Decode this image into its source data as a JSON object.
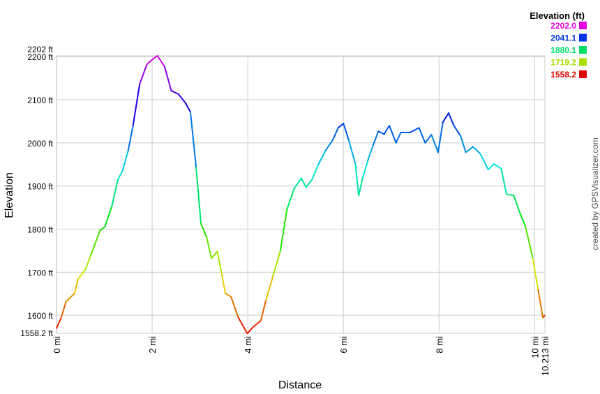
{
  "chart_data": {
    "type": "line",
    "xlabel": "Distance",
    "ylabel": "Elevation",
    "xlim": [
      0,
      10.213
    ],
    "ylim": [
      1558.2,
      2202
    ],
    "grid": true,
    "x_ticks": [
      {
        "value": 0,
        "label": "0 mi"
      },
      {
        "value": 2,
        "label": "2 mi"
      },
      {
        "value": 4,
        "label": "4 mi"
      },
      {
        "value": 6,
        "label": "6 mi"
      },
      {
        "value": 8,
        "label": "8 mi"
      },
      {
        "value": 10,
        "label": "10 mi"
      },
      {
        "value": 10.213,
        "label": "10.213 mi"
      }
    ],
    "y_ticks": [
      {
        "value": 1558.2,
        "label": "1558.2 ft"
      },
      {
        "value": 1600,
        "label": "1600 ft"
      },
      {
        "value": 1700,
        "label": "1700 ft"
      },
      {
        "value": 1800,
        "label": "1800 ft"
      },
      {
        "value": 1900,
        "label": "1900 ft"
      },
      {
        "value": 2000,
        "label": "2000 ft"
      },
      {
        "value": 2100,
        "label": "2100 ft"
      },
      {
        "value": 2200,
        "label": "2200 ft"
      },
      {
        "value": 2202,
        "label": "2202 ft"
      }
    ],
    "legend": {
      "title": "Elevation (ft)",
      "position": "top-right",
      "entries": [
        {
          "label": "2202.0",
          "color": "#e000e0"
        },
        {
          "label": "2041.1",
          "color": "#0033e6"
        },
        {
          "label": "1880.1",
          "color": "#00dd66"
        },
        {
          "label": "1719.2",
          "color": "#aadd00"
        },
        {
          "label": "1558.2",
          "color": "#dd0000"
        }
      ]
    },
    "series": [
      {
        "x": [
          0,
          0.1,
          0.2,
          0.38,
          0.45,
          0.6,
          0.72,
          0.91,
          1.01,
          1.16,
          1.28,
          1.38,
          1.5,
          1.6,
          1.74,
          1.89,
          2.01,
          2.11,
          2.26,
          2.4,
          2.55,
          2.7,
          2.8,
          2.92,
          3.02,
          3.14,
          3.24,
          3.36,
          3.45,
          3.53,
          3.65,
          3.8,
          3.99,
          4.12,
          4.27,
          4.38,
          4.53,
          4.68,
          4.82,
          4.97,
          5.12,
          5.22,
          5.34,
          5.48,
          5.63,
          5.78,
          5.89,
          6.0,
          6.11,
          6.25,
          6.32,
          6.4,
          6.51,
          6.61,
          6.73,
          6.85,
          6.96,
          7.1,
          7.2,
          7.39,
          7.58,
          7.71,
          7.84,
          7.98,
          8.08,
          8.2,
          8.31,
          8.45,
          8.56,
          8.71,
          8.86,
          9.03,
          9.15,
          9.3,
          9.41,
          9.56,
          9.69,
          9.81,
          9.96,
          10.07,
          10.17,
          10.213
        ],
        "y": [
          1570,
          1595,
          1632,
          1651,
          1684,
          1705,
          1740,
          1797,
          1805,
          1854,
          1914,
          1935,
          1983,
          2040,
          2137,
          2182,
          2194,
          2202,
          2177,
          2121,
          2113,
          2092,
          2072,
          1943,
          1813,
          1781,
          1732,
          1748,
          1700,
          1651,
          1643,
          1595,
          1558,
          1574,
          1587,
          1635,
          1692,
          1749,
          1846,
          1894,
          1918,
          1897,
          1914,
          1951,
          1983,
          2007,
          2035,
          2045,
          2007,
          1951,
          1878,
          1918,
          1959,
          1991,
          2027,
          2020,
          2040,
          2000,
          2024,
          2024,
          2035,
          2000,
          2019,
          1978,
          2048,
          2069,
          2040,
          2016,
          1978,
          1991,
          1975,
          1938,
          1951,
          1940,
          1881,
          1878,
          1838,
          1805,
          1732,
          1660,
          1595,
          1600
        ]
      }
    ]
  },
  "credit": "created by GPSVisualizer.com"
}
